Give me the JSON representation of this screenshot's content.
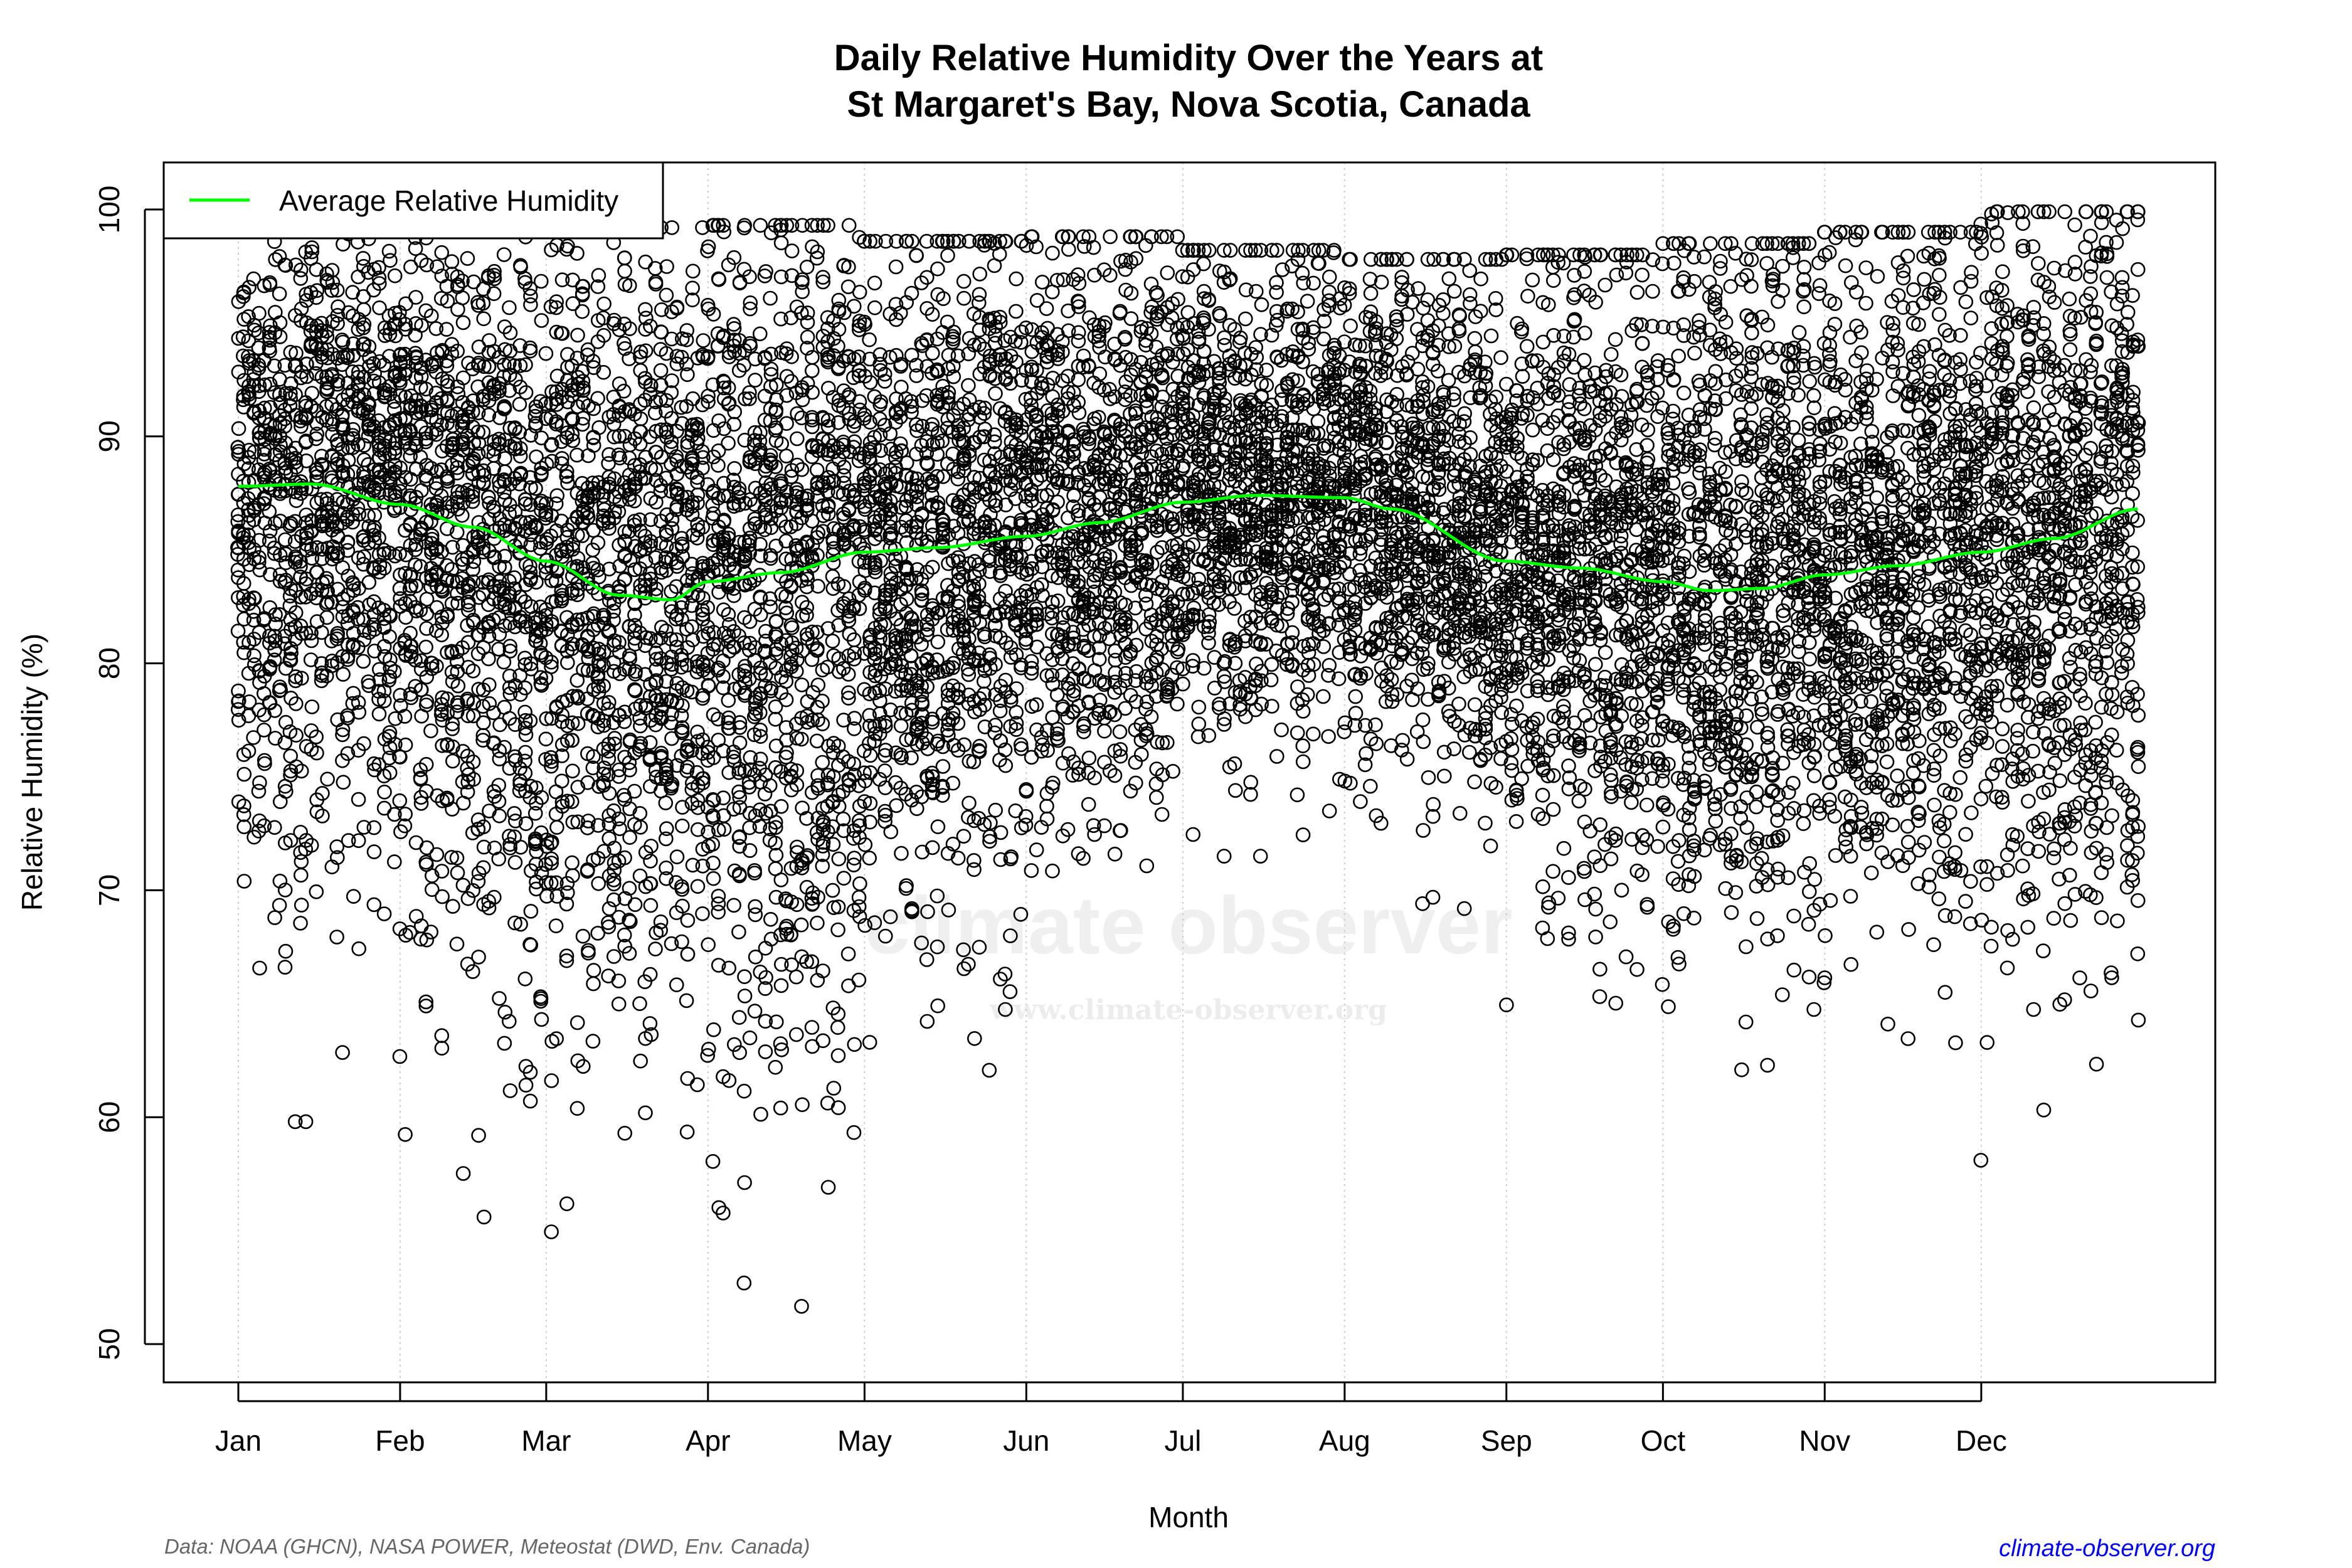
{
  "chart_data": {
    "type": "scatter",
    "title_line1": "Daily Relative Humidity Over the Years at",
    "title_line2": "St Margaret's Bay, Nova Scotia, Canada",
    "xlabel": "Month",
    "ylabel": "Relative Humidity  (%)",
    "ylim": [
      48,
      102
    ],
    "yticks": [
      50,
      60,
      70,
      80,
      90,
      100
    ],
    "xlim_day_of_year": [
      -13,
      393
    ],
    "xticks": [
      {
        "label": "Jan",
        "day": 1
      },
      {
        "label": "Feb",
        "day": 32
      },
      {
        "label": "Mar",
        "day": 60
      },
      {
        "label": "Apr",
        "day": 91
      },
      {
        "label": "May",
        "day": 121
      },
      {
        "label": "Jun",
        "day": 152
      },
      {
        "label": "Jul",
        "day": 182
      },
      {
        "label": "Aug",
        "day": 213
      },
      {
        "label": "Sep",
        "day": 244
      },
      {
        "label": "Oct",
        "day": 274
      },
      {
        "label": "Nov",
        "day": 305
      },
      {
        "label": "Dec",
        "day": 335
      }
    ],
    "grid": "vertical dotted at month ticks",
    "legend": {
      "placement": "top-left",
      "entries": [
        {
          "label": "Average Relative Humidity",
          "color": "#00ff00"
        }
      ]
    },
    "series": [
      {
        "name": "Average Relative Humidity",
        "type": "line",
        "color": "#00ff00",
        "day": [
          1,
          15,
          32,
          46,
          60,
          74,
          84,
          91,
          105,
          121,
          135,
          152,
          166,
          182,
          196,
          213,
          222,
          244,
          258,
          274,
          283,
          293,
          305,
          319,
          335,
          349,
          365
        ],
        "value": [
          87.8,
          87.9,
          87.0,
          86.0,
          84.5,
          83.0,
          82.8,
          83.6,
          84.0,
          84.9,
          85.1,
          85.6,
          86.2,
          87.1,
          87.4,
          87.3,
          86.8,
          84.5,
          84.2,
          83.6,
          83.2,
          83.3,
          83.9,
          84.3,
          84.9,
          85.5,
          86.8
        ]
      },
      {
        "type": "scatter",
        "marker": "open circle",
        "color": "#000000",
        "description_range_by_month": {
          "Jan": [
            59.8,
            99.5
          ],
          "Feb": [
            55.6,
            99.2
          ],
          "Mar": [
            54.4,
            99.2
          ],
          "Apr": [
            50.3,
            99.3
          ],
          "May": [
            60.7,
            98.6
          ],
          "Jun": [
            66.0,
            98.8
          ],
          "Jul": [
            71.5,
            98.2
          ],
          "Aug": [
            68.8,
            97.8
          ],
          "Sep": [
            62.0,
            98.0
          ],
          "Oct": [
            60.2,
            98.5
          ],
          "Nov": [
            60.4,
            99.0
          ],
          "Dec": [
            58.1,
            99.9
          ]
        }
      }
    ]
  },
  "watermark": {
    "main": "climate observer",
    "url": "www.climate-observer.org"
  },
  "footer": {
    "source": "Data: NOAA (GHCN), NASA POWER, Meteostat (DWD, Env. Canada)",
    "link": "climate-observer.org"
  }
}
